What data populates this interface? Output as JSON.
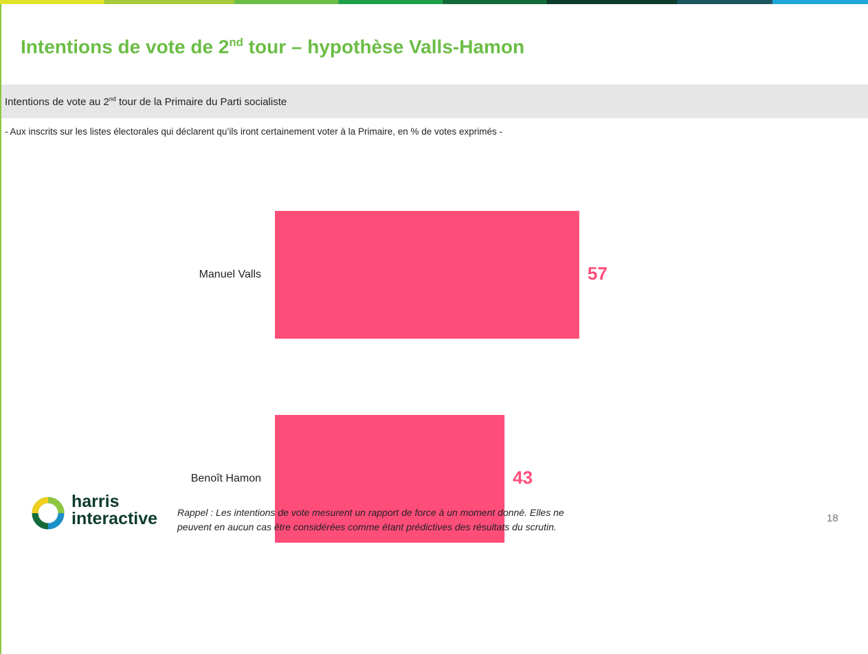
{
  "header": {
    "title": [
      "Intentions de vote de 2",
      "nd",
      " tour – hypothèse Valls-Hamon"
    ],
    "subtitle": [
      "Intentions de vote au 2",
      "nd",
      " tour de la Primaire du Parti socialiste"
    ],
    "note": "- Aux inscrits sur les listes électorales qui déclarent qu’ils iront certainement voter à la Primaire, en % de votes exprimés -"
  },
  "chart_data": {
    "type": "barh",
    "categories": [
      "Manuel Valls",
      "Benoît Hamon"
    ],
    "values": [
      57,
      43
    ],
    "color": "#ff4d7a"
  },
  "footer": {
    "logo": [
      "harris",
      "interactive"
    ],
    "footnote": [
      "Rappel : Les intentions de vote mesurent un rapport de force à un moment donné. Elles ne",
      "peuvent en aucun cas être considérées comme étant prédictives des résultats du scrutin."
    ],
    "page_number": "18"
  }
}
